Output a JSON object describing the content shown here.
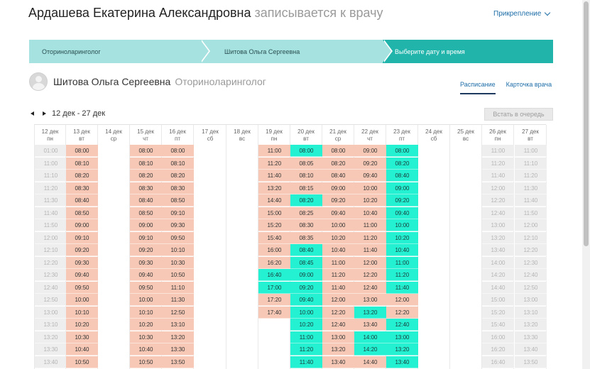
{
  "header": {
    "patient_name": "Ардашева Екатерина Александровна",
    "suffix": "записывается к врачу",
    "attach_label": "Прикрепление"
  },
  "steps": [
    "Оториноларинголог",
    "Шитова Ольга Сергеевна",
    "Выберите дату и время"
  ],
  "doctor": {
    "name": "Шитова Ольга Сергеевна",
    "specialty": "Оториноларинголог"
  },
  "tabs": [
    "Расписание",
    "Карточка врача"
  ],
  "week_range": "12 дек - 27 дек",
  "queue_button": "Встать в очередь",
  "colors": {
    "free": "#24f0d2",
    "booked": "#f6c8b5",
    "past": "#eeeeee",
    "accent": "#21b4ab"
  },
  "schedule": [
    {
      "date": "12 дек",
      "dow": "пн",
      "start": 0,
      "slots": [
        [
          "01:00",
          "p"
        ],
        [
          "11:00",
          "p"
        ],
        [
          "11:10",
          "p"
        ],
        [
          "11:20",
          "p"
        ],
        [
          "11:30",
          "p"
        ],
        [
          "11:40",
          "p"
        ],
        [
          "11:50",
          "p"
        ],
        [
          "12:00",
          "p"
        ],
        [
          "12:10",
          "p"
        ],
        [
          "12:20",
          "p"
        ],
        [
          "12:30",
          "p"
        ],
        [
          "12:40",
          "p"
        ],
        [
          "12:50",
          "p"
        ],
        [
          "13:00",
          "p"
        ],
        [
          "13:10",
          "p"
        ],
        [
          "13:20",
          "p"
        ],
        [
          "13:30",
          "p"
        ],
        [
          "13:40",
          "p"
        ]
      ]
    },
    {
      "date": "13 дек",
      "dow": "вт",
      "start": 0,
      "slots": [
        [
          "08:00",
          "b"
        ],
        [
          "08:10",
          "b"
        ],
        [
          "08:20",
          "b"
        ],
        [
          "08:30",
          "b"
        ],
        [
          "08:40",
          "b"
        ],
        [
          "08:50",
          "b"
        ],
        [
          "09:00",
          "b"
        ],
        [
          "09:10",
          "b"
        ],
        [
          "09:20",
          "b"
        ],
        [
          "09:30",
          "b"
        ],
        [
          "09:40",
          "b"
        ],
        [
          "09:50",
          "b"
        ],
        [
          "10:00",
          "b"
        ],
        [
          "10:10",
          "b"
        ],
        [
          "10:20",
          "b"
        ],
        [
          "10:30",
          "b"
        ],
        [
          "10:40",
          "b"
        ],
        [
          "10:50",
          "b"
        ]
      ]
    },
    {
      "date": "14 дек",
      "dow": "ср",
      "start": 0,
      "slots": []
    },
    {
      "date": "15 дек",
      "dow": "чт",
      "start": 0,
      "slots": [
        [
          "08:00",
          "b"
        ],
        [
          "08:10",
          "b"
        ],
        [
          "08:20",
          "b"
        ],
        [
          "08:30",
          "b"
        ],
        [
          "08:40",
          "b"
        ],
        [
          "08:50",
          "b"
        ],
        [
          "09:00",
          "b"
        ],
        [
          "09:10",
          "b"
        ],
        [
          "09:20",
          "b"
        ],
        [
          "09:30",
          "b"
        ],
        [
          "09:40",
          "b"
        ],
        [
          "09:50",
          "b"
        ],
        [
          "10:00",
          "b"
        ],
        [
          "10:10",
          "b"
        ],
        [
          "10:20",
          "b"
        ],
        [
          "10:30",
          "b"
        ],
        [
          "10:40",
          "b"
        ],
        [
          "10:50",
          "b"
        ]
      ]
    },
    {
      "date": "16 дек",
      "dow": "пт",
      "start": 0,
      "slots": [
        [
          "08:00",
          "b"
        ],
        [
          "08:10",
          "b"
        ],
        [
          "08:20",
          "b"
        ],
        [
          "08:30",
          "b"
        ],
        [
          "08:50",
          "b"
        ],
        [
          "09:10",
          "b"
        ],
        [
          "09:30",
          "b"
        ],
        [
          "09:50",
          "b"
        ],
        [
          "10:10",
          "b"
        ],
        [
          "10:30",
          "b"
        ],
        [
          "10:50",
          "b"
        ],
        [
          "11:10",
          "b"
        ],
        [
          "11:30",
          "b"
        ],
        [
          "12:50",
          "b"
        ],
        [
          "13:10",
          "b"
        ],
        [
          "13:20",
          "b"
        ],
        [
          "13:30",
          "b"
        ],
        [
          "13:50",
          "b"
        ]
      ]
    },
    {
      "date": "17 дек",
      "dow": "сб",
      "start": 0,
      "slots": []
    },
    {
      "date": "18 дек",
      "dow": "вс",
      "start": 0,
      "slots": []
    },
    {
      "date": "19 дек",
      "dow": "пн",
      "start": 0,
      "slots": [
        [
          "11:00",
          "b"
        ],
        [
          "11:20",
          "b"
        ],
        [
          "11:40",
          "b"
        ],
        [
          "13:20",
          "b"
        ],
        [
          "14:40",
          "b"
        ],
        [
          "15:00",
          "b"
        ],
        [
          "15:20",
          "b"
        ],
        [
          "15:40",
          "b"
        ],
        [
          "16:00",
          "b"
        ],
        [
          "16:20",
          "b"
        ],
        [
          "16:40",
          "f"
        ],
        [
          "17:00",
          "f"
        ],
        [
          "17:20",
          "b"
        ],
        [
          "17:40",
          "b"
        ]
      ]
    },
    {
      "date": "20 дек",
      "dow": "вт",
      "start": 0,
      "slots": [
        [
          "08:00",
          "f"
        ],
        [
          "08:05",
          "b"
        ],
        [
          "08:10",
          "b"
        ],
        [
          "08:15",
          "b"
        ],
        [
          "08:20",
          "f"
        ],
        [
          "08:25",
          "b"
        ],
        [
          "08:30",
          "b"
        ],
        [
          "08:35",
          "b"
        ],
        [
          "08:40",
          "f"
        ],
        [
          "08:45",
          "f"
        ],
        [
          "09:00",
          "f"
        ],
        [
          "09:20",
          "f"
        ],
        [
          "09:40",
          "f"
        ],
        [
          "10:00",
          "f"
        ],
        [
          "10:20",
          "f"
        ],
        [
          "11:00",
          "f"
        ],
        [
          "11:20",
          "f"
        ],
        [
          "11:40",
          "f"
        ]
      ]
    },
    {
      "date": "21 дек",
      "dow": "ср",
      "start": 0,
      "slots": [
        [
          "08:00",
          "b"
        ],
        [
          "08:20",
          "b"
        ],
        [
          "08:40",
          "b"
        ],
        [
          "09:00",
          "b"
        ],
        [
          "09:20",
          "b"
        ],
        [
          "09:40",
          "b"
        ],
        [
          "10:00",
          "b"
        ],
        [
          "10:20",
          "b"
        ],
        [
          "10:40",
          "b"
        ],
        [
          "11:00",
          "b"
        ],
        [
          "11:20",
          "b"
        ],
        [
          "11:40",
          "b"
        ],
        [
          "12:00",
          "b"
        ],
        [
          "12:20",
          "b"
        ],
        [
          "12:40",
          "b"
        ],
        [
          "13:00",
          "b"
        ],
        [
          "13:20",
          "b"
        ],
        [
          "13:40",
          "b"
        ]
      ]
    },
    {
      "date": "22 дек",
      "dow": "чт",
      "start": 0,
      "slots": [
        [
          "09:00",
          "b"
        ],
        [
          "09:20",
          "b"
        ],
        [
          "09:40",
          "b"
        ],
        [
          "10:00",
          "b"
        ],
        [
          "10:20",
          "b"
        ],
        [
          "10:40",
          "b"
        ],
        [
          "11:00",
          "b"
        ],
        [
          "11:20",
          "b"
        ],
        [
          "11:40",
          "b"
        ],
        [
          "12:00",
          "b"
        ],
        [
          "12:20",
          "b"
        ],
        [
          "12:40",
          "b"
        ],
        [
          "13:00",
          "b"
        ],
        [
          "13:20",
          "f"
        ],
        [
          "13:40",
          "b"
        ],
        [
          "14:00",
          "f"
        ],
        [
          "14:20",
          "f"
        ],
        [
          "14:40",
          "b"
        ]
      ]
    },
    {
      "date": "23 дек",
      "dow": "пт",
      "start": 0,
      "slots": [
        [
          "08:00",
          "f"
        ],
        [
          "08:20",
          "f"
        ],
        [
          "08:40",
          "f"
        ],
        [
          "09:00",
          "f"
        ],
        [
          "09:20",
          "f"
        ],
        [
          "09:40",
          "f"
        ],
        [
          "10:00",
          "f"
        ],
        [
          "10:20",
          "f"
        ],
        [
          "10:40",
          "f"
        ],
        [
          "11:00",
          "f"
        ],
        [
          "11:20",
          "f"
        ],
        [
          "11:40",
          "f"
        ],
        [
          "12:00",
          "b"
        ],
        [
          "12:20",
          "b"
        ],
        [
          "12:40",
          "f"
        ],
        [
          "13:00",
          "f"
        ],
        [
          "13:20",
          "f"
        ],
        [
          "13:40",
          "f"
        ]
      ]
    },
    {
      "date": "24 дек",
      "dow": "сб",
      "start": 0,
      "slots": []
    },
    {
      "date": "25 дек",
      "dow": "вс",
      "start": 0,
      "slots": []
    },
    {
      "date": "26 дек",
      "dow": "пн",
      "start": 0,
      "slots": [
        [
          "11:00",
          "p"
        ],
        [
          "11:20",
          "p"
        ],
        [
          "11:40",
          "p"
        ],
        [
          "12:00",
          "p"
        ],
        [
          "12:20",
          "p"
        ],
        [
          "12:40",
          "p"
        ],
        [
          "13:00",
          "p"
        ],
        [
          "13:20",
          "p"
        ],
        [
          "13:40",
          "p"
        ],
        [
          "14:00",
          "p"
        ],
        [
          "14:20",
          "p"
        ],
        [
          "14:40",
          "p"
        ],
        [
          "15:00",
          "p"
        ],
        [
          "15:20",
          "p"
        ],
        [
          "15:40",
          "p"
        ],
        [
          "16:00",
          "p"
        ],
        [
          "16:20",
          "p"
        ],
        [
          "16:40",
          "p"
        ]
      ]
    },
    {
      "date": "27 дек",
      "dow": "вт",
      "start": 0,
      "slots": [
        [
          "11:00",
          "p"
        ],
        [
          "11:10",
          "p"
        ],
        [
          "11:20",
          "p"
        ],
        [
          "11:30",
          "p"
        ],
        [
          "11:40",
          "p"
        ],
        [
          "11:50",
          "p"
        ],
        [
          "12:00",
          "p"
        ],
        [
          "12:10",
          "p"
        ],
        [
          "12:20",
          "p"
        ],
        [
          "12:30",
          "p"
        ],
        [
          "12:40",
          "p"
        ],
        [
          "12:50",
          "p"
        ],
        [
          "13:00",
          "p"
        ],
        [
          "13:10",
          "p"
        ],
        [
          "13:20",
          "p"
        ],
        [
          "13:30",
          "p"
        ],
        [
          "13:40",
          "p"
        ],
        [
          "13:50",
          "p"
        ]
      ]
    }
  ]
}
